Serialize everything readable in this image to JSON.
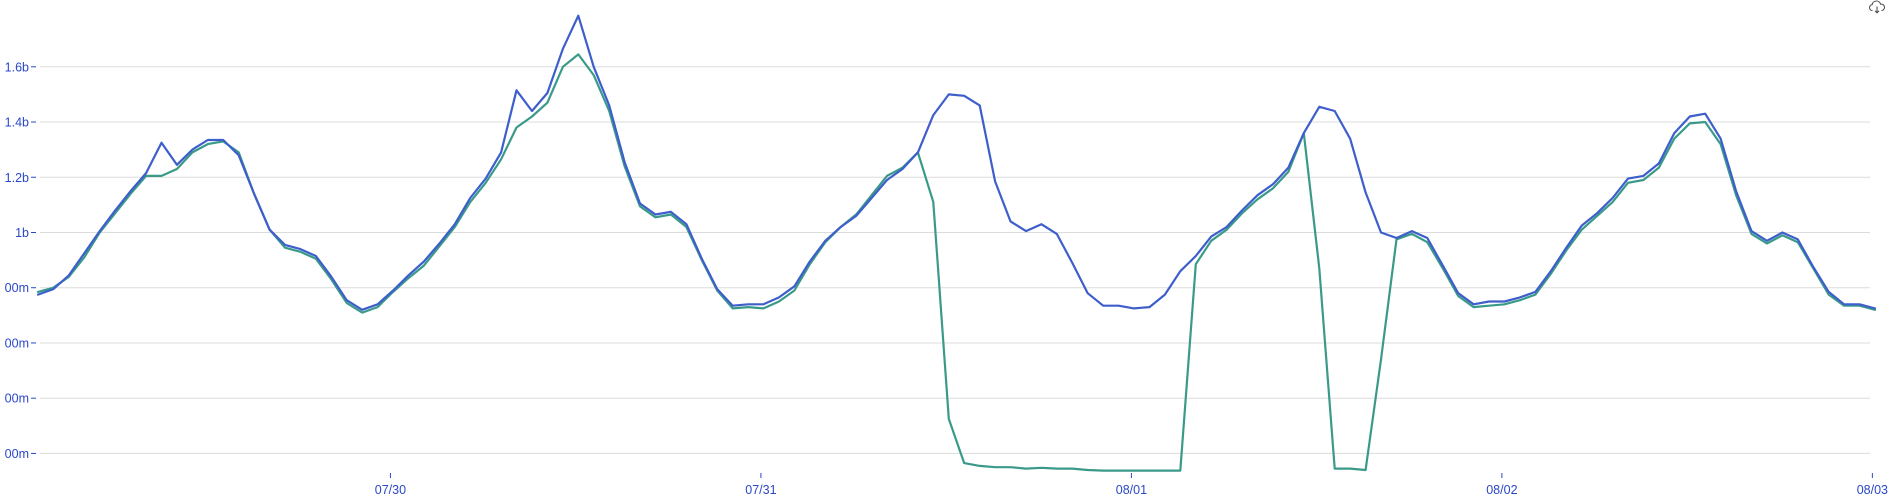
{
  "chart_data": {
    "type": "line",
    "title": "",
    "xlabel": "",
    "ylabel": "",
    "grid": true,
    "legend": "none",
    "ylim": [
      140000000,
      1840000000
    ],
    "yticks": [
      {
        "value": 1600000000,
        "label": "1.6b"
      },
      {
        "value": 1400000000,
        "label": "1.4b"
      },
      {
        "value": 1200000000,
        "label": "1.2b"
      },
      {
        "value": 1000000000,
        "label": "1b"
      },
      {
        "value": 800000000,
        "label": "00m"
      },
      {
        "value": 600000000,
        "label": "00m"
      },
      {
        "value": 400000000,
        "label": "00m"
      },
      {
        "value": 200000000,
        "label": "00m"
      }
    ],
    "xticks": [
      {
        "hour": 29.33,
        "label": "07/30"
      },
      {
        "hour": 53.33,
        "label": "07/31"
      },
      {
        "hour": 77.33,
        "label": "08/01"
      },
      {
        "hour": 101.33,
        "label": "08/02"
      },
      {
        "hour": 125.33,
        "label": "08/03"
      }
    ],
    "series": [
      {
        "color": "#3a9a8a",
        "points": [
          [
            6.5,
            785
          ],
          [
            7.5,
            800
          ],
          [
            8.5,
            840
          ],
          [
            9.5,
            910
          ],
          [
            10.5,
            1000
          ],
          [
            11.5,
            1070
          ],
          [
            12.5,
            1140
          ],
          [
            13.5,
            1205
          ],
          [
            14.5,
            1205
          ],
          [
            15.5,
            1230
          ],
          [
            16.5,
            1290
          ],
          [
            17.5,
            1320
          ],
          [
            18.5,
            1330
          ],
          [
            19.5,
            1290
          ],
          [
            20.5,
            1140
          ],
          [
            21.5,
            1010
          ],
          [
            22.5,
            945
          ],
          [
            23.5,
            930
          ],
          [
            24.5,
            905
          ],
          [
            25.5,
            830
          ],
          [
            26.5,
            745
          ],
          [
            27.5,
            710
          ],
          [
            28.5,
            730
          ],
          [
            29.5,
            785
          ],
          [
            30.5,
            835
          ],
          [
            31.5,
            880
          ],
          [
            32.5,
            950
          ],
          [
            33.5,
            1020
          ],
          [
            34.5,
            1110
          ],
          [
            35.5,
            1180
          ],
          [
            36.5,
            1265
          ],
          [
            37.5,
            1380
          ],
          [
            38.5,
            1420
          ],
          [
            39.5,
            1470
          ],
          [
            40.5,
            1600
          ],
          [
            41.5,
            1645
          ],
          [
            42.5,
            1570
          ],
          [
            43.5,
            1440
          ],
          [
            44.5,
            1240
          ],
          [
            45.5,
            1095
          ],
          [
            46.5,
            1055
          ],
          [
            47.5,
            1065
          ],
          [
            48.5,
            1020
          ],
          [
            49.5,
            900
          ],
          [
            50.5,
            790
          ],
          [
            51.5,
            725
          ],
          [
            52.5,
            730
          ],
          [
            53.5,
            725
          ],
          [
            54.5,
            750
          ],
          [
            55.5,
            790
          ],
          [
            56.5,
            885
          ],
          [
            57.5,
            965
          ],
          [
            58.5,
            1020
          ],
          [
            59.5,
            1065
          ],
          [
            60.5,
            1135
          ],
          [
            61.5,
            1205
          ],
          [
            62.5,
            1235
          ],
          [
            63.5,
            1290
          ],
          [
            64.5,
            1110
          ],
          [
            65.5,
            325
          ],
          [
            66.5,
            165
          ],
          [
            67.5,
            155
          ],
          [
            68.5,
            150
          ],
          [
            69.5,
            150
          ],
          [
            70.5,
            145
          ],
          [
            71.5,
            148
          ],
          [
            72.5,
            145
          ],
          [
            73.5,
            145
          ],
          [
            74.5,
            140
          ],
          [
            75.5,
            138
          ],
          [
            76.5,
            138
          ],
          [
            77.5,
            138
          ],
          [
            78.5,
            138
          ],
          [
            79.5,
            138
          ],
          [
            80.5,
            138
          ],
          [
            81.5,
            885
          ],
          [
            82.5,
            970
          ],
          [
            83.5,
            1010
          ],
          [
            84.5,
            1070
          ],
          [
            85.5,
            1120
          ],
          [
            86.5,
            1160
          ],
          [
            87.5,
            1220
          ],
          [
            88.5,
            1360
          ],
          [
            89.5,
            870
          ],
          [
            90.5,
            145
          ],
          [
            91.5,
            145
          ],
          [
            92.5,
            140
          ],
          [
            93.5,
            540
          ],
          [
            94.5,
            975
          ],
          [
            95.5,
            995
          ],
          [
            96.5,
            965
          ],
          [
            97.5,
            870
          ],
          [
            98.5,
            770
          ],
          [
            99.5,
            730
          ],
          [
            100.5,
            735
          ],
          [
            101.5,
            740
          ],
          [
            102.5,
            755
          ],
          [
            103.5,
            775
          ],
          [
            104.5,
            850
          ],
          [
            105.5,
            935
          ],
          [
            106.5,
            1010
          ],
          [
            107.5,
            1060
          ],
          [
            108.5,
            1110
          ],
          [
            109.5,
            1180
          ],
          [
            110.5,
            1190
          ],
          [
            111.5,
            1235
          ],
          [
            112.5,
            1340
          ],
          [
            113.5,
            1395
          ],
          [
            114.5,
            1400
          ],
          [
            115.5,
            1320
          ],
          [
            116.5,
            1135
          ],
          [
            117.5,
            995
          ],
          [
            118.5,
            960
          ],
          [
            119.5,
            990
          ],
          [
            120.5,
            965
          ],
          [
            121.5,
            870
          ],
          [
            122.5,
            775
          ],
          [
            123.5,
            735
          ],
          [
            124.5,
            735
          ],
          [
            125.5,
            720
          ]
        ]
      },
      {
        "color": "#3d5ecb",
        "points": [
          [
            6.5,
            775
          ],
          [
            7.5,
            795
          ],
          [
            8.5,
            845
          ],
          [
            9.5,
            925
          ],
          [
            10.5,
            1005
          ],
          [
            11.5,
            1080
          ],
          [
            12.5,
            1150
          ],
          [
            13.5,
            1215
          ],
          [
            14.5,
            1325
          ],
          [
            15.5,
            1245
          ],
          [
            16.5,
            1300
          ],
          [
            17.5,
            1335
          ],
          [
            18.5,
            1335
          ],
          [
            19.5,
            1280
          ],
          [
            20.5,
            1140
          ],
          [
            21.5,
            1010
          ],
          [
            22.5,
            955
          ],
          [
            23.5,
            940
          ],
          [
            24.5,
            915
          ],
          [
            25.5,
            840
          ],
          [
            26.5,
            755
          ],
          [
            27.5,
            720
          ],
          [
            28.5,
            740
          ],
          [
            29.5,
            790
          ],
          [
            30.5,
            845
          ],
          [
            31.5,
            895
          ],
          [
            32.5,
            960
          ],
          [
            33.5,
            1030
          ],
          [
            34.5,
            1125
          ],
          [
            35.5,
            1195
          ],
          [
            36.5,
            1290
          ],
          [
            37.5,
            1515
          ],
          [
            38.5,
            1440
          ],
          [
            39.5,
            1505
          ],
          [
            40.5,
            1665
          ],
          [
            41.5,
            1785
          ],
          [
            42.5,
            1600
          ],
          [
            43.5,
            1460
          ],
          [
            44.5,
            1255
          ],
          [
            45.5,
            1105
          ],
          [
            46.5,
            1065
          ],
          [
            47.5,
            1075
          ],
          [
            48.5,
            1030
          ],
          [
            49.5,
            905
          ],
          [
            50.5,
            795
          ],
          [
            51.5,
            735
          ],
          [
            52.5,
            740
          ],
          [
            53.5,
            740
          ],
          [
            54.5,
            765
          ],
          [
            55.5,
            805
          ],
          [
            56.5,
            895
          ],
          [
            57.5,
            970
          ],
          [
            58.5,
            1020
          ],
          [
            59.5,
            1060
          ],
          [
            60.5,
            1125
          ],
          [
            61.5,
            1190
          ],
          [
            62.5,
            1230
          ],
          [
            63.5,
            1290
          ],
          [
            64.5,
            1425
          ],
          [
            65.5,
            1500
          ],
          [
            66.5,
            1495
          ],
          [
            67.5,
            1460
          ],
          [
            68.5,
            1185
          ],
          [
            69.5,
            1040
          ],
          [
            70.5,
            1005
          ],
          [
            71.5,
            1030
          ],
          [
            72.5,
            995
          ],
          [
            73.5,
            890
          ],
          [
            74.5,
            780
          ],
          [
            75.5,
            735
          ],
          [
            76.5,
            735
          ],
          [
            77.5,
            725
          ],
          [
            78.5,
            730
          ],
          [
            79.5,
            775
          ],
          [
            80.5,
            860
          ],
          [
            81.5,
            915
          ],
          [
            82.5,
            985
          ],
          [
            83.5,
            1020
          ],
          [
            84.5,
            1080
          ],
          [
            85.5,
            1135
          ],
          [
            86.5,
            1175
          ],
          [
            87.5,
            1235
          ],
          [
            88.5,
            1360
          ],
          [
            89.5,
            1455
          ],
          [
            90.5,
            1440
          ],
          [
            91.5,
            1340
          ],
          [
            92.5,
            1145
          ],
          [
            93.5,
            1000
          ],
          [
            94.5,
            980
          ],
          [
            95.5,
            1005
          ],
          [
            96.5,
            980
          ],
          [
            97.5,
            880
          ],
          [
            98.5,
            780
          ],
          [
            99.5,
            740
          ],
          [
            100.5,
            750
          ],
          [
            101.5,
            750
          ],
          [
            102.5,
            765
          ],
          [
            103.5,
            785
          ],
          [
            104.5,
            860
          ],
          [
            105.5,
            945
          ],
          [
            106.5,
            1025
          ],
          [
            107.5,
            1070
          ],
          [
            108.5,
            1125
          ],
          [
            109.5,
            1195
          ],
          [
            110.5,
            1205
          ],
          [
            111.5,
            1250
          ],
          [
            112.5,
            1360
          ],
          [
            113.5,
            1420
          ],
          [
            114.5,
            1430
          ],
          [
            115.5,
            1340
          ],
          [
            116.5,
            1150
          ],
          [
            117.5,
            1005
          ],
          [
            118.5,
            970
          ],
          [
            119.5,
            1000
          ],
          [
            120.5,
            975
          ],
          [
            121.5,
            875
          ],
          [
            122.5,
            785
          ],
          [
            123.5,
            740
          ],
          [
            124.5,
            740
          ],
          [
            125.5,
            725
          ]
        ]
      }
    ]
  },
  "toolbar": {
    "download_icon": "cloud-download-icon"
  }
}
